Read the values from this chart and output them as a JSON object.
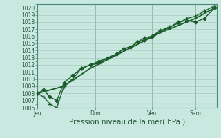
{
  "background_color": "#c8e8e0",
  "plot_bg_color": "#c8e8e0",
  "grid_major_color": "#a8c8c0",
  "grid_minor_color": "#b8d8d0",
  "line_color": "#1a5c2a",
  "xlabel": "Pression niveau de la mer( hPa )",
  "ylim": [
    1006,
    1020.5
  ],
  "xlim": [
    0,
    10.2
  ],
  "yticks": [
    1006,
    1007,
    1008,
    1009,
    1010,
    1011,
    1012,
    1013,
    1014,
    1015,
    1016,
    1017,
    1018,
    1019,
    1020
  ],
  "xtick_labels": [
    "Jeu",
    "Dim",
    "Ven",
    "Sam"
  ],
  "xtick_positions": [
    0,
    3.3,
    6.5,
    9.0
  ],
  "line1_x": [
    0,
    0.35,
    0.7,
    1.1,
    1.5,
    2.0,
    2.5,
    3.0,
    3.5,
    4.0,
    4.5,
    4.9,
    5.3,
    5.7,
    6.1,
    6.5,
    7.0,
    7.5,
    8.0,
    8.5,
    9.0,
    9.5,
    10.1
  ],
  "line1_y": [
    1008.0,
    1008.5,
    1007.5,
    1007.0,
    1009.5,
    1010.5,
    1011.5,
    1012.0,
    1012.5,
    1013.0,
    1013.5,
    1014.2,
    1014.5,
    1015.2,
    1015.5,
    1016.0,
    1016.7,
    1017.2,
    1018.0,
    1018.2,
    1018.0,
    1018.5,
    1020.0
  ],
  "line2_x": [
    0,
    0.35,
    0.7,
    1.1,
    1.5,
    2.0,
    2.5,
    3.0,
    3.5,
    4.0,
    4.5,
    4.9,
    5.3,
    5.7,
    6.1,
    6.5,
    7.0,
    7.5,
    8.0,
    8.5,
    9.0,
    9.5,
    10.1
  ],
  "line2_y": [
    1008.0,
    1007.5,
    1006.5,
    1006.0,
    1009.0,
    1010.0,
    1011.5,
    1012.0,
    1012.2,
    1013.0,
    1013.5,
    1014.3,
    1014.5,
    1015.2,
    1015.8,
    1016.0,
    1016.8,
    1017.3,
    1017.8,
    1018.5,
    1018.8,
    1019.5,
    1020.3
  ],
  "line3_x": [
    0,
    1.5,
    3.0,
    5.0,
    7.0,
    9.0,
    10.1
  ],
  "line3_y": [
    1008.0,
    1009.0,
    1011.5,
    1014.0,
    1016.5,
    1018.5,
    1020.0
  ],
  "marker_size": 2.5,
  "linewidth": 1.0,
  "tick_fontsize": 5.5,
  "label_fontsize": 7.5
}
